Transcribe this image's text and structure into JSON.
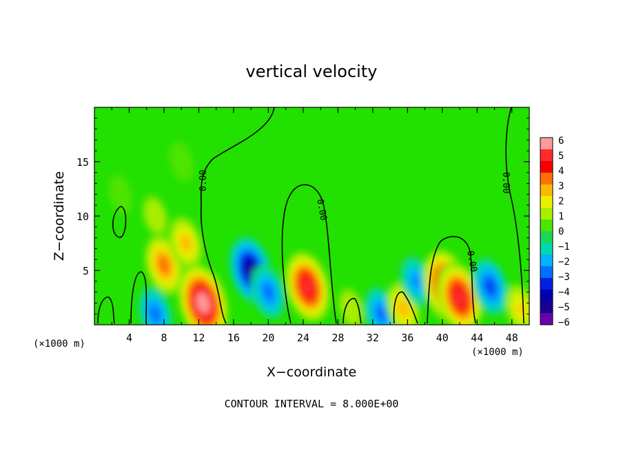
{
  "chart_data": {
    "type": "heatmap",
    "title": "vertical velocity",
    "xlabel": "X−coordinate",
    "ylabel": "Z−coordinate",
    "x_unit_left": "(×1000 m)",
    "x_unit_right": "(×1000 m)",
    "xlim": [
      0,
      50
    ],
    "ylim": [
      0,
      20
    ],
    "x_ticks": [
      "4",
      "8",
      "12",
      "16",
      "20",
      "24",
      "28",
      "32",
      "36",
      "40",
      "44",
      "48"
    ],
    "y_ticks": [
      "5",
      "10",
      "15"
    ],
    "contour_label": "0.00",
    "footer": "CONTOUR INTERVAL = 8.000E+00",
    "colorbar": {
      "labels": [
        "6",
        "5",
        "4",
        "3",
        "2",
        "1",
        "0",
        "−1",
        "−2",
        "−3",
        "−4",
        "−5",
        "−6"
      ],
      "range": [
        -6,
        6
      ],
      "colors": [
        "#ff9a9a",
        "#ff2a2a",
        "#f50000",
        "#ff7000",
        "#ffb800",
        "#e8f200",
        "#a8ee00",
        "#4ee400",
        "#18d855",
        "#00d8b0",
        "#00b4ff",
        "#0070ff",
        "#0020e0",
        "#0000b0",
        "#1a0090",
        "#6a00b0"
      ]
    },
    "features": [
      {
        "x": 7.0,
        "z": 10.0,
        "w": 1.5
      },
      {
        "x": 8.0,
        "z": 5.5,
        "w": 4.0
      },
      {
        "x": 10.5,
        "z": 7.5,
        "w": 3.0
      },
      {
        "x": 12.5,
        "z": 2.0,
        "w": 6.5
      },
      {
        "x": 18.0,
        "z": 5.0,
        "w": -5.0
      },
      {
        "x": 20.0,
        "z": 3.0,
        "w": -3.0
      },
      {
        "x": 24.5,
        "z": 3.5,
        "w": 5.5
      },
      {
        "x": 29.5,
        "z": 1.5,
        "w": 1.5
      },
      {
        "x": 33.0,
        "z": 1.0,
        "w": -3.0
      },
      {
        "x": 35.5,
        "z": 1.5,
        "w": 3.0
      },
      {
        "x": 37.0,
        "z": 4.0,
        "w": -2.5
      },
      {
        "x": 40.5,
        "z": 3.5,
        "w": 6.0
      },
      {
        "x": 42.0,
        "z": 2.5,
        "w": 5.5
      },
      {
        "x": 45.5,
        "z": 3.5,
        "w": -3.5
      },
      {
        "x": 49.0,
        "z": 1.5,
        "w": 2.5
      },
      {
        "x": 7.0,
        "z": 1.0,
        "w": -3.0
      },
      {
        "x": 3.0,
        "z": 12.0,
        "w": 0.6
      },
      {
        "x": 10.0,
        "z": 15.0,
        "w": 0.8
      }
    ]
  }
}
